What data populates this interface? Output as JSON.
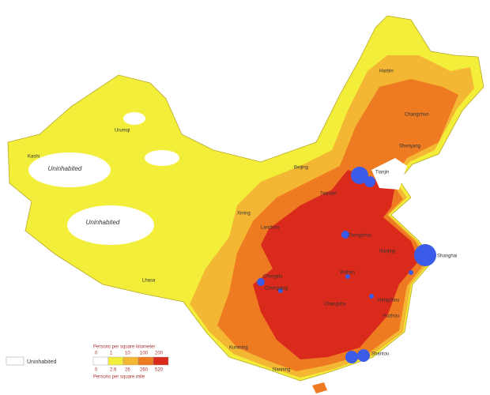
{
  "map": {
    "uninhabited_labels": [
      "Uninhabited",
      "Uninhabited"
    ],
    "cities": [
      "Harbin",
      "Changchun",
      "Shenyang",
      "Beijing",
      "Tianjin",
      "Taiyuan",
      "Xining",
      "Lanzhou",
      "Urumqi",
      "Kashi",
      "Lhasa",
      "Chengdu",
      "Chongqing",
      "Zhengzhou",
      "Wuhan",
      "Changsha",
      "Nanjing",
      "Shanghai",
      "Hangzhou",
      "Fuzhou",
      "Shantou",
      "Kunming",
      "Nanning"
    ],
    "legend": {
      "km_title": "Persons per square kilometer",
      "km_ticks": [
        0,
        1,
        10,
        100,
        200
      ],
      "mi_title": "Persons per square mile",
      "mi_ticks": [
        0,
        2.6,
        26,
        260,
        520
      ],
      "colors": [
        "#ffffff",
        "#f2ee3a",
        "#f4b733",
        "#ee7a22",
        "#d92a1c"
      ],
      "uninhabited": "Uninhabited"
    }
  }
}
